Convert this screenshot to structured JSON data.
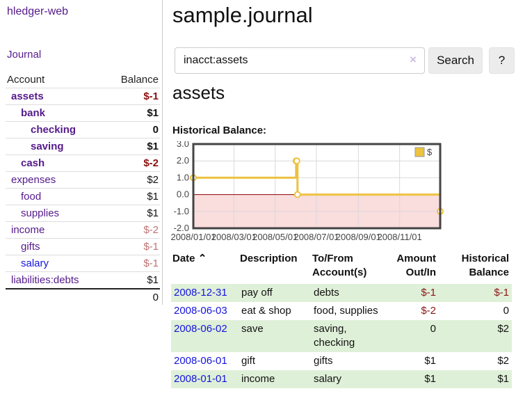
{
  "app": {
    "title": "hledger-web",
    "nav_journal": "Journal"
  },
  "sidebar": {
    "header": {
      "account": "Account",
      "balance": "Balance"
    },
    "accounts": [
      {
        "name": "assets",
        "balance": "$-1",
        "indent": 1,
        "bold": true,
        "neg": "strong"
      },
      {
        "name": "bank",
        "balance": "$1",
        "indent": 2,
        "bold": true
      },
      {
        "name": "checking",
        "balance": "0",
        "indent": 3,
        "bold": true
      },
      {
        "name": "saving",
        "balance": "$1",
        "indent": 3,
        "bold": true
      },
      {
        "name": "cash",
        "balance": "$-2",
        "indent": 2,
        "bold": true,
        "neg": "strong"
      },
      {
        "name": "expenses",
        "balance": "$2",
        "indent": 1
      },
      {
        "name": "food",
        "balance": "$1",
        "indent": 2
      },
      {
        "name": "supplies",
        "balance": "$1",
        "indent": 2
      },
      {
        "name": "income",
        "balance": "$-2",
        "indent": 1,
        "neg": "muted"
      },
      {
        "name": "gifts",
        "balance": "$-1",
        "indent": 2,
        "neg": "muted"
      },
      {
        "name": "salary",
        "balance": "$-1",
        "indent": 2,
        "neg": "muted",
        "link_style": "blue"
      },
      {
        "name": "liabilities:debts",
        "balance": "$1",
        "indent": 1
      }
    ],
    "total": "0"
  },
  "header": {
    "title": "sample.journal"
  },
  "search": {
    "value": "inacct:assets",
    "clear_icon": "×",
    "button_label": "Search",
    "help_label": "?"
  },
  "account_page": {
    "heading": "assets",
    "chart_label": "Historical Balance:"
  },
  "chart_data": {
    "type": "line",
    "title": "Historical Balance",
    "step": true,
    "xlim_days": [
      0,
      365
    ],
    "ylim": [
      -2,
      3
    ],
    "colors": {
      "line": "#edc240",
      "negative_fill": "#fadddd",
      "zero_line": "#8b0000",
      "grid": "#d9d9d9",
      "border": "#444444"
    },
    "legend": {
      "label": "$",
      "position": "top-right"
    },
    "y_ticks": [
      {
        "v": 3,
        "label": "3.0"
      },
      {
        "v": 2,
        "label": "2.0"
      },
      {
        "v": 1,
        "label": "1.0"
      },
      {
        "v": 0,
        "label": "0.0"
      },
      {
        "v": -1,
        "label": "-1.0"
      },
      {
        "v": -2,
        "label": "-2.0"
      }
    ],
    "x_ticks": [
      {
        "day": 0,
        "label": "2008/01/01"
      },
      {
        "day": 60,
        "label": "2008/03/01"
      },
      {
        "day": 121,
        "label": "2008/05/01"
      },
      {
        "day": 182,
        "label": "2008/07/01"
      },
      {
        "day": 244,
        "label": "2008/09/01"
      },
      {
        "day": 305,
        "label": "2008/11/01"
      }
    ],
    "series": [
      {
        "name": "$",
        "points": [
          {
            "date": "2008-01-01",
            "day": 0,
            "value": 1
          },
          {
            "date": "2008-06-01",
            "day": 152,
            "value": 2
          },
          {
            "date": "2008-06-02",
            "day": 153,
            "value": 2
          },
          {
            "date": "2008-06-03",
            "day": 154,
            "value": 0
          },
          {
            "date": "2008-12-31",
            "day": 365,
            "value": -1
          }
        ]
      }
    ]
  },
  "register": {
    "headers": {
      "date": "Date",
      "sort_indicator": "⌃",
      "description": "Description",
      "accounts": "To/From Account(s)",
      "amount": "Amount Out/In",
      "balance": "Historical Balance"
    },
    "rows": [
      {
        "date": "2008-12-31",
        "description": "pay off",
        "accounts": "debts",
        "amount": "$-1",
        "balance": "$-1"
      },
      {
        "date": "2008-06-03",
        "description": "eat & shop",
        "accounts": "food, supplies",
        "amount": "$-2",
        "balance": "0"
      },
      {
        "date": "2008-06-02",
        "description": "save",
        "accounts": "saving, checking",
        "amount": "0",
        "balance": "$2"
      },
      {
        "date": "2008-06-01",
        "description": "gift",
        "accounts": "gifts",
        "amount": "$1",
        "balance": "$2"
      },
      {
        "date": "2008-01-01",
        "description": "income",
        "accounts": "salary",
        "amount": "$1",
        "balance": "$1"
      }
    ]
  }
}
